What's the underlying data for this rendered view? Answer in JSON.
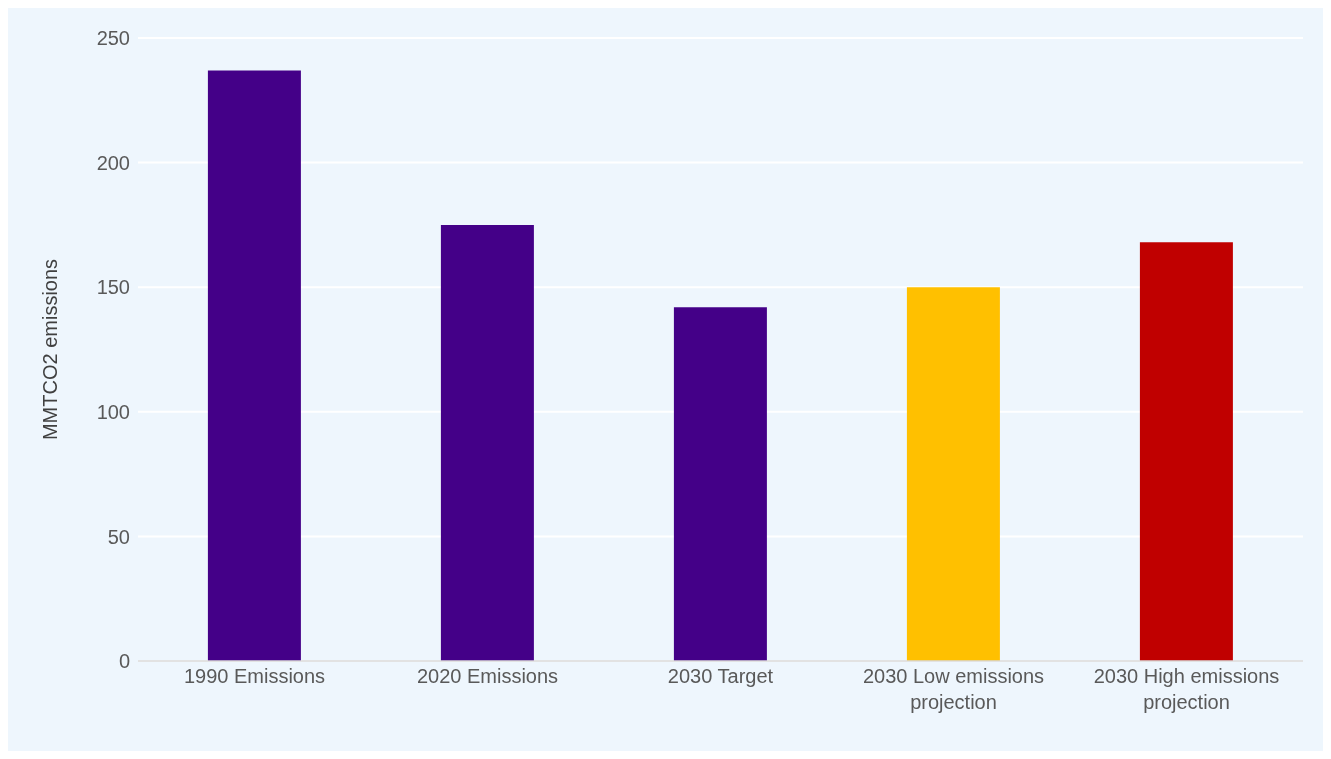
{
  "chart_data": {
    "type": "bar",
    "ylabel": "MMTCO2 emissions",
    "categories": [
      "1990 Emissions",
      "2020 Emissions",
      "2030 Target",
      "2030 Low emissions projection",
      "2030 High emissions projection"
    ],
    "values": [
      237,
      175,
      142,
      150,
      168
    ],
    "colors": [
      "#440088",
      "#440088",
      "#440088",
      "#ffc000",
      "#c00000"
    ],
    "ylim": [
      0,
      250
    ],
    "yticks": [
      0,
      50,
      100,
      150,
      200,
      250
    ],
    "grid": "y"
  }
}
